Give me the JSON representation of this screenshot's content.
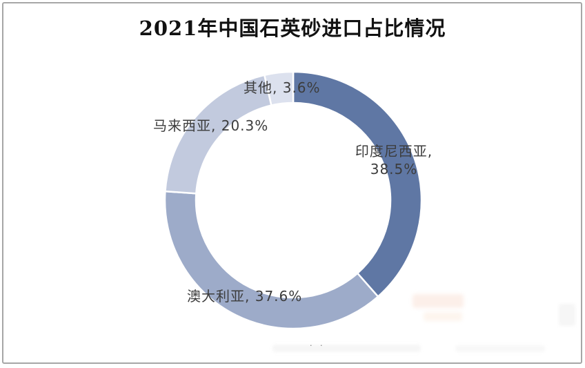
{
  "title": "2021年中国石英砂进口占比情况",
  "chart_data": {
    "type": "pie",
    "subtype": "donut",
    "title": "2021年中国石英砂进口占比情况",
    "categories": [
      "印度尼西亚",
      "澳大利亚",
      "马来西亚",
      "其他"
    ],
    "values": [
      38.5,
      37.6,
      20.3,
      3.6
    ],
    "unit": "%",
    "colors": [
      "#5f77a4",
      "#9dabc9",
      "#c2cade",
      "#dce1ee"
    ],
    "start_position": "12-oclock-clockwise",
    "inner_radius_ratio": 0.76,
    "separator_color": "#ffffff",
    "legend_position": "none",
    "data_labels": [
      "印度尼西亚, 38.5%",
      "澳大利亚, 37.6%",
      "马来西亚, 20.3%",
      "其他, 3.6%"
    ]
  },
  "labels": {
    "other": "其他, 3.6%",
    "malaysia": "马来西亚, 20.3%",
    "indonesia_line1": "印度尼西亚,",
    "indonesia_line2": "38.5%",
    "australia": "澳大利亚, 37.6%"
  },
  "footer": {
    "marks": "· ·"
  },
  "style": {
    "label_color": "#3c3c3c",
    "title_color": "#111111",
    "frame_border_color": "#a6a6a6",
    "background": "#ffffff"
  }
}
